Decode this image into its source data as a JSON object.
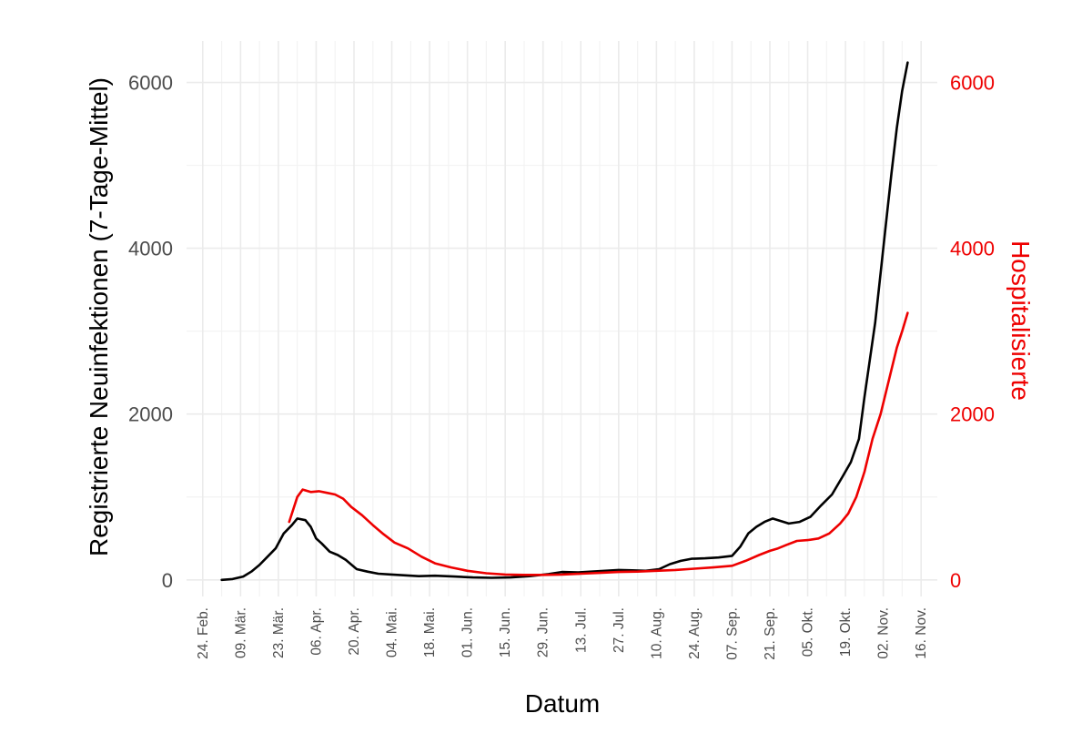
{
  "chart_data": {
    "type": "line",
    "xlabel": "Datum",
    "ylabel_left": "Registrierte Neuinfektionen (7-Tage-Mittel)",
    "ylabel_right": "Hospitalisierte",
    "ylim": [
      -200,
      6500
    ],
    "y_ticks": [
      "0",
      "2000",
      "4000",
      "6000"
    ],
    "y_tick_values": [
      0,
      2000,
      4000,
      6000
    ],
    "x_tick_labels": [
      "24. Feb.",
      "09. Mär.",
      "23. Mär.",
      "06. Apr.",
      "20. Apr.",
      "04. Mai.",
      "18. Mai.",
      "01. Jun.",
      "15. Jun.",
      "29. Jun.",
      "13. Jul.",
      "27. Jul.",
      "10. Aug.",
      "24. Aug.",
      "07. Sep.",
      "21. Sep.",
      "05. Okt.",
      "19. Okt.",
      "02. Nov.",
      "16. Nov."
    ],
    "x_tick_dates": [
      "2020-02-24",
      "2020-03-09",
      "2020-03-23",
      "2020-04-06",
      "2020-04-20",
      "2020-05-04",
      "2020-05-18",
      "2020-06-01",
      "2020-06-15",
      "2020-06-29",
      "2020-07-13",
      "2020-07-27",
      "2020-08-10",
      "2020-08-24",
      "2020-09-07",
      "2020-09-21",
      "2020-10-05",
      "2020-10-19",
      "2020-11-02",
      "2020-11-16"
    ],
    "xlim": [
      "2020-02-18",
      "2020-11-22"
    ],
    "grid": true,
    "series": [
      {
        "color": "#000000",
        "axis": "left",
        "points": [
          [
            "2020-03-02",
            0
          ],
          [
            "2020-03-06",
            10
          ],
          [
            "2020-03-10",
            40
          ],
          [
            "2020-03-13",
            100
          ],
          [
            "2020-03-16",
            180
          ],
          [
            "2020-03-19",
            280
          ],
          [
            "2020-03-22",
            380
          ],
          [
            "2020-03-25",
            560
          ],
          [
            "2020-03-28",
            660
          ],
          [
            "2020-03-30",
            740
          ],
          [
            "2020-04-02",
            720
          ],
          [
            "2020-04-04",
            640
          ],
          [
            "2020-04-06",
            500
          ],
          [
            "2020-04-08",
            440
          ],
          [
            "2020-04-11",
            340
          ],
          [
            "2020-04-14",
            300
          ],
          [
            "2020-04-17",
            240
          ],
          [
            "2020-04-21",
            130
          ],
          [
            "2020-04-25",
            100
          ],
          [
            "2020-04-29",
            75
          ],
          [
            "2020-05-04",
            65
          ],
          [
            "2020-05-09",
            55
          ],
          [
            "2020-05-14",
            45
          ],
          [
            "2020-05-20",
            50
          ],
          [
            "2020-05-27",
            40
          ],
          [
            "2020-06-03",
            30
          ],
          [
            "2020-06-10",
            25
          ],
          [
            "2020-06-17",
            30
          ],
          [
            "2020-06-24",
            45
          ],
          [
            "2020-07-01",
            70
          ],
          [
            "2020-07-06",
            95
          ],
          [
            "2020-07-12",
            90
          ],
          [
            "2020-07-17",
            100
          ],
          [
            "2020-07-22",
            110
          ],
          [
            "2020-07-27",
            120
          ],
          [
            "2020-08-01",
            115
          ],
          [
            "2020-08-06",
            110
          ],
          [
            "2020-08-11",
            130
          ],
          [
            "2020-08-15",
            190
          ],
          [
            "2020-08-19",
            230
          ],
          [
            "2020-08-23",
            255
          ],
          [
            "2020-08-28",
            260
          ],
          [
            "2020-09-02",
            270
          ],
          [
            "2020-09-07",
            290
          ],
          [
            "2020-09-10",
            400
          ],
          [
            "2020-09-13",
            560
          ],
          [
            "2020-09-16",
            640
          ],
          [
            "2020-09-19",
            700
          ],
          [
            "2020-09-22",
            740
          ],
          [
            "2020-09-25",
            710
          ],
          [
            "2020-09-28",
            680
          ],
          [
            "2020-10-02",
            700
          ],
          [
            "2020-10-06",
            760
          ],
          [
            "2020-10-10",
            900
          ],
          [
            "2020-10-14",
            1030
          ],
          [
            "2020-10-18",
            1250
          ],
          [
            "2020-10-21",
            1420
          ],
          [
            "2020-10-24",
            1700
          ],
          [
            "2020-10-26",
            2200
          ],
          [
            "2020-10-28",
            2650
          ],
          [
            "2020-10-30",
            3100
          ],
          [
            "2020-11-01",
            3700
          ],
          [
            "2020-11-03",
            4300
          ],
          [
            "2020-11-05",
            4900
          ],
          [
            "2020-11-07",
            5450
          ],
          [
            "2020-11-09",
            5900
          ],
          [
            "2020-11-11",
            6240
          ]
        ]
      },
      {
        "color": "#ee0000",
        "axis": "right",
        "points": [
          [
            "2020-03-27",
            700
          ],
          [
            "2020-03-30",
            1000
          ],
          [
            "2020-04-01",
            1090
          ],
          [
            "2020-04-04",
            1060
          ],
          [
            "2020-04-07",
            1070
          ],
          [
            "2020-04-10",
            1050
          ],
          [
            "2020-04-13",
            1030
          ],
          [
            "2020-04-16",
            980
          ],
          [
            "2020-04-19",
            880
          ],
          [
            "2020-04-23",
            780
          ],
          [
            "2020-04-27",
            660
          ],
          [
            "2020-05-01",
            550
          ],
          [
            "2020-05-05",
            450
          ],
          [
            "2020-05-10",
            380
          ],
          [
            "2020-05-15",
            280
          ],
          [
            "2020-05-20",
            200
          ],
          [
            "2020-05-26",
            150
          ],
          [
            "2020-06-01",
            110
          ],
          [
            "2020-06-08",
            80
          ],
          [
            "2020-06-15",
            65
          ],
          [
            "2020-06-22",
            60
          ],
          [
            "2020-06-29",
            60
          ],
          [
            "2020-07-06",
            65
          ],
          [
            "2020-07-13",
            75
          ],
          [
            "2020-07-20",
            85
          ],
          [
            "2020-07-27",
            95
          ],
          [
            "2020-08-03",
            100
          ],
          [
            "2020-08-10",
            110
          ],
          [
            "2020-08-17",
            120
          ],
          [
            "2020-08-24",
            135
          ],
          [
            "2020-08-31",
            150
          ],
          [
            "2020-09-07",
            170
          ],
          [
            "2020-09-12",
            230
          ],
          [
            "2020-09-17",
            300
          ],
          [
            "2020-09-21",
            350
          ],
          [
            "2020-09-24",
            380
          ],
          [
            "2020-09-27",
            420
          ],
          [
            "2020-10-01",
            470
          ],
          [
            "2020-10-05",
            480
          ],
          [
            "2020-10-09",
            500
          ],
          [
            "2020-10-13",
            560
          ],
          [
            "2020-10-17",
            680
          ],
          [
            "2020-10-20",
            800
          ],
          [
            "2020-10-23",
            1000
          ],
          [
            "2020-10-26",
            1300
          ],
          [
            "2020-10-29",
            1700
          ],
          [
            "2020-11-01",
            2000
          ],
          [
            "2020-11-04",
            2400
          ],
          [
            "2020-11-07",
            2800
          ],
          [
            "2020-11-09",
            3000
          ],
          [
            "2020-11-11",
            3220
          ]
        ]
      }
    ]
  },
  "colors": {
    "left_axis_text": "#000000",
    "right_axis_text": "#ee0000",
    "grid": "#ebebeb"
  }
}
